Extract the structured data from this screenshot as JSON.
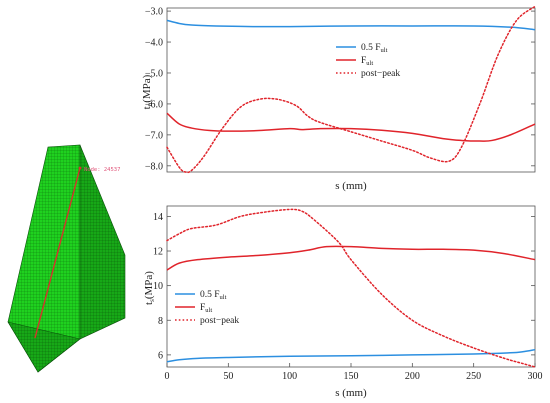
{
  "mesh": {
    "node_label": "Node: 24537"
  },
  "colors": {
    "blue": "#2c8fe0",
    "red": "#e0242b",
    "mesh": "#1fd11f"
  },
  "chart_data": [
    {
      "type": "line",
      "xlabel": "s (mm)",
      "ylabel": "t_n(MPa)",
      "ylabel_main": "t",
      "ylabel_sub": "n",
      "ylabel_unit": "(MPa)",
      "xlim": [
        0,
        300
      ],
      "ylim": [
        -8.2,
        -2.9
      ],
      "yticks": [
        -3.0,
        -4.0,
        -5.0,
        -6.0,
        -7.0,
        -8.0
      ],
      "ytick_labels": [
        "−3.0",
        "−4.0",
        "−5.0",
        "−6.0",
        "−7.0",
        "−8.0"
      ],
      "legend": [
        "0.5 F_ult",
        "F_ult",
        "post−peak"
      ],
      "legend_position": "upper-center",
      "series": [
        {
          "name": "0.5 F_ult",
          "style": "solid",
          "color": "blue",
          "x": [
            0,
            10,
            20,
            40,
            70,
            100,
            150,
            200,
            250,
            280,
            300
          ],
          "y": [
            -3.3,
            -3.4,
            -3.45,
            -3.48,
            -3.5,
            -3.5,
            -3.48,
            -3.48,
            -3.48,
            -3.52,
            -3.6
          ]
        },
        {
          "name": "F_ult",
          "style": "solid",
          "color": "red",
          "x": [
            0,
            10,
            20,
            35,
            50,
            75,
            100,
            110,
            125,
            150,
            175,
            200,
            225,
            240,
            255,
            265,
            280,
            300
          ],
          "y": [
            -6.3,
            -6.65,
            -6.78,
            -6.86,
            -6.88,
            -6.86,
            -6.8,
            -6.83,
            -6.8,
            -6.8,
            -6.85,
            -6.95,
            -7.12,
            -7.18,
            -7.2,
            -7.18,
            -7.0,
            -6.65
          ]
        },
        {
          "name": "post−peak",
          "style": "dotted",
          "color": "red",
          "x": [
            0,
            10,
            15,
            20,
            30,
            45,
            60,
            75,
            90,
            105,
            115,
            125,
            150,
            175,
            200,
            215,
            230,
            240,
            255,
            270,
            285,
            300
          ],
          "y": [
            -7.4,
            -8.05,
            -8.2,
            -8.15,
            -7.7,
            -6.8,
            -6.1,
            -5.85,
            -5.85,
            -6.05,
            -6.4,
            -6.6,
            -6.9,
            -7.2,
            -7.5,
            -7.75,
            -7.85,
            -7.4,
            -6.0,
            -4.4,
            -3.3,
            -2.85
          ]
        }
      ]
    },
    {
      "type": "line",
      "xlabel": "s (mm)",
      "ylabel": "t_s(MPa)",
      "ylabel_main": "t",
      "ylabel_sub": "s",
      "ylabel_unit": "(MPa)",
      "xlim": [
        0,
        300
      ],
      "ylim": [
        5.3,
        14.6
      ],
      "xticks": [
        0,
        50,
        100,
        150,
        200,
        250,
        300
      ],
      "xtick_labels": [
        "0",
        "50",
        "100",
        "150",
        "200",
        "250",
        "300"
      ],
      "yticks": [
        6,
        8,
        10,
        12,
        14
      ],
      "ytick_labels": [
        "6",
        "8",
        "10",
        "12",
        "14"
      ],
      "legend": [
        "0.5 F_ult",
        "F_ult",
        "post−peak"
      ],
      "legend_position": "lower-left",
      "series": [
        {
          "name": "0.5 F_ult",
          "style": "solid",
          "color": "blue",
          "x": [
            0,
            10,
            25,
            50,
            100,
            150,
            200,
            250,
            280,
            290,
            300
          ],
          "y": [
            5.6,
            5.72,
            5.8,
            5.85,
            5.92,
            5.95,
            6.0,
            6.05,
            6.12,
            6.18,
            6.3
          ]
        },
        {
          "name": "F_ult",
          "style": "solid",
          "color": "red",
          "x": [
            0,
            10,
            25,
            50,
            75,
            100,
            115,
            130,
            150,
            175,
            200,
            225,
            250,
            275,
            300
          ],
          "y": [
            10.9,
            11.3,
            11.5,
            11.65,
            11.75,
            11.9,
            12.05,
            12.25,
            12.25,
            12.15,
            12.1,
            12.1,
            12.05,
            11.85,
            11.5
          ]
        },
        {
          "name": "post−peak",
          "style": "dotted",
          "color": "red",
          "x": [
            0,
            10,
            20,
            40,
            60,
            80,
            100,
            110,
            120,
            140,
            150,
            175,
            200,
            225,
            250,
            275,
            290,
            300
          ],
          "y": [
            12.6,
            13.0,
            13.3,
            13.5,
            14.0,
            14.25,
            14.4,
            14.3,
            13.8,
            12.5,
            11.5,
            9.5,
            8.0,
            7.1,
            6.4,
            5.8,
            5.5,
            5.3
          ]
        }
      ]
    }
  ]
}
